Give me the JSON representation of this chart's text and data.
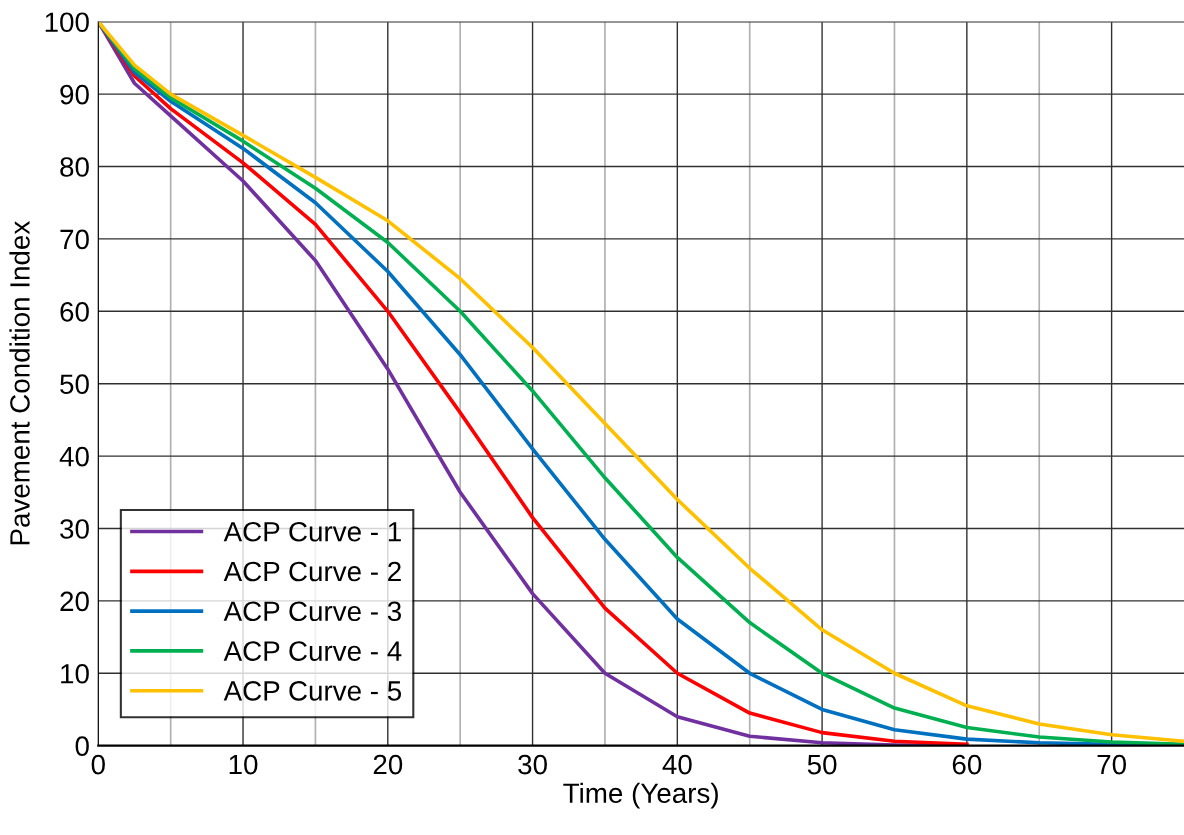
{
  "chart_data": {
    "type": "line",
    "xlabel": "Time (Years)",
    "ylabel": "Pavement Condition Index",
    "x": [
      0,
      2.5,
      5,
      10,
      15,
      20,
      25,
      30,
      35,
      40,
      45,
      50,
      55,
      60,
      65,
      70,
      75
    ],
    "series": [
      {
        "name": "ACP Curve - 1",
        "color": "#7030a0",
        "values": [
          100,
          91.5,
          87,
          78,
          67,
          52,
          35,
          21,
          10,
          4,
          1.3,
          0.4,
          0.1,
          0,
          null,
          null,
          null
        ]
      },
      {
        "name": "ACP Curve - 2",
        "color": "#ff0000",
        "values": [
          100,
          92.5,
          88,
          80.5,
          72,
          60,
          46,
          31.5,
          19,
          10,
          4.5,
          1.8,
          0.6,
          0.2,
          null,
          0,
          0
        ]
      },
      {
        "name": "ACP Curve - 3",
        "color": "#0070c0",
        "values": [
          100,
          93,
          89,
          82.5,
          75,
          65.5,
          54,
          41,
          28.5,
          17.5,
          10,
          5,
          2.2,
          0.9,
          0.4,
          0.2,
          0.1
        ]
      },
      {
        "name": "ACP Curve - 4",
        "color": "#00b050",
        "values": [
          100,
          93.5,
          89.5,
          83.5,
          77,
          69.5,
          60,
          49,
          37,
          26,
          17,
          10,
          5.2,
          2.5,
          1.2,
          0.5,
          0.2
        ]
      },
      {
        "name": "ACP Curve - 5",
        "color": "#ffc000",
        "values": [
          100,
          94,
          90,
          84.3,
          78.5,
          72.5,
          64.5,
          55,
          44.5,
          34,
          24.5,
          16,
          10,
          5.5,
          3,
          1.5,
          0.6
        ]
      }
    ],
    "xlim": [
      0,
      75
    ],
    "xticks": [
      0,
      10,
      20,
      30,
      40,
      50,
      60,
      70
    ],
    "ylim": [
      0,
      100
    ],
    "yticks": [
      0,
      10,
      20,
      30,
      40,
      50,
      60,
      70,
      80,
      90,
      100
    ],
    "grid": true,
    "legend": "bottom left",
    "marker": "none",
    "line_style": "solid"
  }
}
